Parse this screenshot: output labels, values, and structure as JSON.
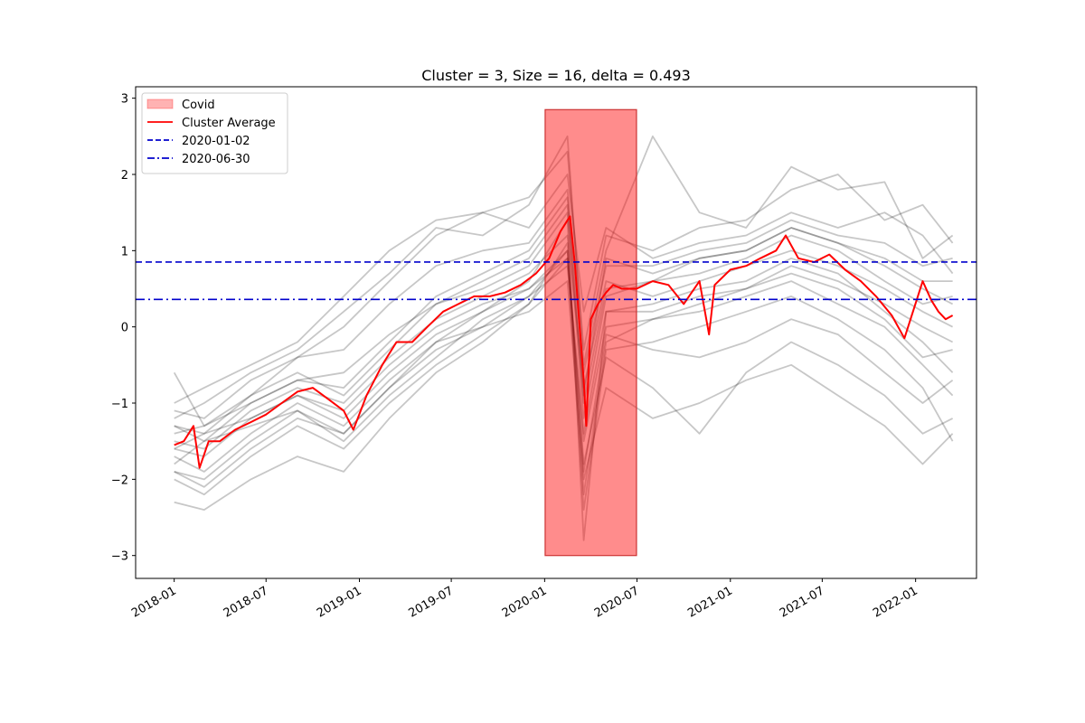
{
  "chart_data": {
    "type": "line",
    "title": "Cluster = 3, Size = 16, delta = 0.493",
    "xlabel": "",
    "ylabel": "",
    "x_range": [
      "2017-10-17",
      "2022-05-01"
    ],
    "ylim": [
      -3.3,
      3.15
    ],
    "yticks": [
      -3,
      -2,
      -1,
      0,
      1,
      2,
      3
    ],
    "ytick_labels": [
      "−3",
      "−2",
      "−1",
      "0",
      "1",
      "2",
      "3"
    ],
    "xticks": [
      "2018-01-01",
      "2018-07-01",
      "2019-01-01",
      "2019-07-01",
      "2020-01-01",
      "2020-07-01",
      "2021-01-01",
      "2021-07-01",
      "2022-01-01"
    ],
    "xtick_labels": [
      "2018-01",
      "2018-07",
      "2019-01",
      "2019-07",
      "2020-01",
      "2020-07",
      "2021-01",
      "2021-07",
      "2022-01"
    ],
    "grid": false,
    "legend_position": "top-left",
    "legend": [
      {
        "label": "Covid",
        "kind": "patch",
        "color": "#ff0000"
      },
      {
        "label": "Cluster Average",
        "kind": "line",
        "color": "#ff0000"
      },
      {
        "label": "2020-01-02",
        "kind": "dashed",
        "color": "#0000cc"
      },
      {
        "label": "2020-06-30",
        "kind": "dashdot",
        "color": "#0000cc"
      }
    ],
    "covid_span": {
      "x0": "2020-01-02",
      "x1": "2020-06-30",
      "y0": -3.0,
      "y1": 2.85,
      "color": "#ff0000"
    },
    "hlines": [
      {
        "label": "2020-01-02",
        "y": 0.85,
        "style": "dashed",
        "color": "#0000cc"
      },
      {
        "label": "2020-06-30",
        "y": 0.36,
        "style": "dashdot",
        "color": "#0000cc"
      }
    ],
    "cluster_average": {
      "name": "Cluster Average",
      "color": "#ff0000",
      "x": [
        "2018-01-01",
        "2018-01-20",
        "2018-02-08",
        "2018-02-20",
        "2018-03-10",
        "2018-04-01",
        "2018-05-01",
        "2018-06-01",
        "2018-07-01",
        "2018-08-01",
        "2018-09-01",
        "2018-10-01",
        "2018-11-01",
        "2018-12-01",
        "2018-12-20",
        "2019-01-15",
        "2019-02-15",
        "2019-03-15",
        "2019-04-15",
        "2019-05-15",
        "2019-06-15",
        "2019-07-15",
        "2019-08-15",
        "2019-09-15",
        "2019-10-15",
        "2019-11-15",
        "2019-12-15",
        "2020-01-10",
        "2020-02-01",
        "2020-02-20",
        "2020-03-01",
        "2020-03-10",
        "2020-03-18",
        "2020-03-23",
        "2020-04-01",
        "2020-04-15",
        "2020-05-01",
        "2020-05-15",
        "2020-06-01",
        "2020-06-30",
        "2020-08-01",
        "2020-09-01",
        "2020-10-01",
        "2020-11-01",
        "2020-11-20",
        "2020-12-01",
        "2021-01-01",
        "2021-02-01",
        "2021-03-01",
        "2021-04-01",
        "2021-04-20",
        "2021-05-15",
        "2021-06-15",
        "2021-07-15",
        "2021-08-15",
        "2021-09-15",
        "2021-10-15",
        "2021-11-15",
        "2021-12-10",
        "2022-01-15",
        "2022-02-01",
        "2022-02-15",
        "2022-03-01",
        "2022-03-15"
      ],
      "y": [
        -1.55,
        -1.5,
        -1.3,
        -1.85,
        -1.5,
        -1.5,
        -1.35,
        -1.25,
        -1.15,
        -1.0,
        -0.85,
        -0.8,
        -0.95,
        -1.1,
        -1.35,
        -0.9,
        -0.5,
        -0.2,
        -0.2,
        0.0,
        0.2,
        0.3,
        0.4,
        0.4,
        0.45,
        0.55,
        0.7,
        0.9,
        1.25,
        1.45,
        0.8,
        0.0,
        -0.7,
        -1.3,
        0.1,
        0.3,
        0.45,
        0.55,
        0.5,
        0.5,
        0.6,
        0.55,
        0.3,
        0.6,
        -0.1,
        0.55,
        0.75,
        0.8,
        0.9,
        1.0,
        1.2,
        0.9,
        0.85,
        0.95,
        0.75,
        0.6,
        0.4,
        0.15,
        -0.15,
        0.6,
        0.35,
        0.2,
        0.1,
        0.15
      ]
    },
    "member_series": [
      {
        "color": "#000000",
        "x": [
          "2018-01-01",
          "2018-03-01",
          "2018-06-01",
          "2018-09-01",
          "2018-12-01",
          "2019-03-01",
          "2019-06-01",
          "2019-09-01",
          "2019-12-01",
          "2020-02-15",
          "2020-03-18",
          "2020-05-01",
          "2020-08-01",
          "2020-11-01",
          "2021-02-01",
          "2021-05-01",
          "2021-08-01",
          "2021-11-01",
          "2022-01-15",
          "2022-03-15"
        ],
        "y": [
          -0.6,
          -1.3,
          -0.9,
          -0.4,
          0.0,
          0.6,
          1.2,
          1.5,
          1.7,
          2.3,
          -0.3,
          1.2,
          1.0,
          1.3,
          1.4,
          1.8,
          2.0,
          1.4,
          1.6,
          1.1
        ]
      },
      {
        "color": "#000000",
        "x": [
          "2018-01-01",
          "2018-03-01",
          "2018-06-01",
          "2018-09-01",
          "2018-12-01",
          "2019-03-01",
          "2019-06-01",
          "2019-09-01",
          "2019-12-01",
          "2020-02-15",
          "2020-03-18",
          "2020-05-01",
          "2020-08-01",
          "2020-11-01",
          "2021-02-01",
          "2021-05-01",
          "2021-08-01",
          "2021-11-01",
          "2022-01-15",
          "2022-03-15"
        ],
        "y": [
          -2.3,
          -2.4,
          -2.0,
          -1.7,
          -1.9,
          -1.2,
          -0.6,
          -0.2,
          0.3,
          0.9,
          -2.4,
          -0.3,
          -0.2,
          0.0,
          0.2,
          0.4,
          0.1,
          -0.3,
          -0.8,
          -1.5
        ]
      },
      {
        "color": "#000000",
        "x": [
          "2018-01-01",
          "2018-03-01",
          "2018-06-01",
          "2018-09-01",
          "2018-12-01",
          "2019-03-01",
          "2019-06-01",
          "2019-09-01",
          "2019-12-01",
          "2020-02-15",
          "2020-03-18",
          "2020-05-01",
          "2020-08-01",
          "2020-11-01",
          "2021-02-01",
          "2021-05-01",
          "2021-08-01",
          "2021-11-01",
          "2022-01-15",
          "2022-03-15"
        ],
        "y": [
          -1.9,
          -2.1,
          -1.6,
          -1.2,
          -1.4,
          -0.8,
          -0.2,
          0.2,
          0.6,
          1.4,
          -2.8,
          0.2,
          0.3,
          0.5,
          0.6,
          0.9,
          0.7,
          0.2,
          -0.2,
          -0.6
        ]
      },
      {
        "color": "#000000",
        "x": [
          "2018-01-01",
          "2018-03-01",
          "2018-06-01",
          "2018-09-01",
          "2018-12-01",
          "2019-03-01",
          "2019-06-01",
          "2019-09-01",
          "2019-12-01",
          "2020-02-15",
          "2020-03-18",
          "2020-05-01",
          "2020-08-01",
          "2020-11-01",
          "2021-02-01",
          "2021-05-01",
          "2021-08-01",
          "2021-11-01",
          "2022-01-15",
          "2022-03-15"
        ],
        "y": [
          -1.2,
          -1.0,
          -0.6,
          -0.3,
          0.2,
          0.7,
          1.3,
          1.2,
          1.6,
          2.5,
          -0.5,
          1.0,
          2.5,
          1.5,
          1.3,
          2.1,
          1.8,
          1.9,
          0.9,
          1.2
        ]
      },
      {
        "color": "#000000",
        "x": [
          "2018-01-01",
          "2018-03-01",
          "2018-06-01",
          "2018-09-01",
          "2018-12-01",
          "2019-03-01",
          "2019-06-01",
          "2019-09-01",
          "2019-12-01",
          "2020-02-15",
          "2020-03-18",
          "2020-05-01",
          "2020-08-01",
          "2020-11-01",
          "2021-02-01",
          "2021-05-01",
          "2021-08-01",
          "2021-11-01",
          "2022-01-15",
          "2022-03-15"
        ],
        "y": [
          -1.6,
          -1.7,
          -1.2,
          -0.9,
          -1.1,
          -0.5,
          0.0,
          0.3,
          0.5,
          1.0,
          -1.8,
          -0.4,
          -0.8,
          -1.4,
          -0.6,
          -0.2,
          -0.5,
          -0.9,
          -1.4,
          -1.2
        ]
      },
      {
        "color": "#000000",
        "x": [
          "2018-01-01",
          "2018-03-01",
          "2018-06-01",
          "2018-09-01",
          "2018-12-01",
          "2019-03-01",
          "2019-06-01",
          "2019-09-01",
          "2019-12-01",
          "2020-02-15",
          "2020-03-18",
          "2020-05-01",
          "2020-08-01",
          "2020-11-01",
          "2021-02-01",
          "2021-05-01",
          "2021-08-01",
          "2021-11-01",
          "2022-01-15",
          "2022-03-15"
        ],
        "y": [
          -1.4,
          -1.3,
          -1.0,
          -0.7,
          -0.6,
          -0.1,
          0.3,
          0.6,
          0.9,
          1.6,
          -1.0,
          0.5,
          0.6,
          0.9,
          1.0,
          1.3,
          1.1,
          0.8,
          0.5,
          0.3
        ]
      },
      {
        "color": "#000000",
        "x": [
          "2018-01-01",
          "2018-03-01",
          "2018-06-01",
          "2018-09-01",
          "2018-12-01",
          "2019-03-01",
          "2019-06-01",
          "2019-09-01",
          "2019-12-01",
          "2020-02-15",
          "2020-03-18",
          "2020-05-01",
          "2020-08-01",
          "2020-11-01",
          "2021-02-01",
          "2021-05-01",
          "2021-08-01",
          "2021-11-01",
          "2022-01-15",
          "2022-03-15"
        ],
        "y": [
          -1.8,
          -1.5,
          -1.3,
          -1.1,
          -1.5,
          -0.9,
          -0.4,
          0.1,
          0.4,
          0.8,
          -1.5,
          0.0,
          0.1,
          0.3,
          0.5,
          0.7,
          0.5,
          0.1,
          -0.4,
          -0.3
        ]
      },
      {
        "color": "#000000",
        "x": [
          "2018-01-01",
          "2018-03-01",
          "2018-06-01",
          "2018-09-01",
          "2018-12-01",
          "2019-03-01",
          "2019-06-01",
          "2019-09-01",
          "2019-12-01",
          "2020-02-15",
          "2020-03-18",
          "2020-05-01",
          "2020-08-01",
          "2020-11-01",
          "2021-02-01",
          "2021-05-01",
          "2021-08-01",
          "2021-11-01",
          "2022-01-15",
          "2022-03-15"
        ],
        "y": [
          -1.0,
          -0.8,
          -0.5,
          -0.2,
          0.4,
          1.0,
          1.4,
          1.5,
          1.3,
          2.0,
          0.2,
          1.3,
          0.9,
          1.1,
          1.2,
          1.5,
          1.3,
          1.5,
          1.2,
          0.7
        ]
      },
      {
        "color": "#000000",
        "x": [
          "2018-01-01",
          "2018-03-01",
          "2018-06-01",
          "2018-09-01",
          "2018-12-01",
          "2019-03-01",
          "2019-06-01",
          "2019-09-01",
          "2019-12-01",
          "2020-02-15",
          "2020-03-18",
          "2020-05-01",
          "2020-08-01",
          "2020-11-01",
          "2021-02-01",
          "2021-05-01",
          "2021-08-01",
          "2021-11-01",
          "2022-01-15",
          "2022-03-15"
        ],
        "y": [
          -1.7,
          -1.9,
          -1.4,
          -1.0,
          -1.3,
          -0.7,
          -0.2,
          0.0,
          0.2,
          0.6,
          -2.0,
          -0.8,
          -1.2,
          -1.0,
          -0.7,
          -0.5,
          -0.9,
          -1.3,
          -1.8,
          -1.4
        ]
      },
      {
        "color": "#000000",
        "x": [
          "2018-01-01",
          "2018-03-01",
          "2018-06-01",
          "2018-09-01",
          "2018-12-01",
          "2019-03-01",
          "2019-06-01",
          "2019-09-01",
          "2019-12-01",
          "2020-02-15",
          "2020-03-18",
          "2020-05-01",
          "2020-08-01",
          "2020-11-01",
          "2021-02-01",
          "2021-05-01",
          "2021-08-01",
          "2021-11-01",
          "2022-01-15",
          "2022-03-15"
        ],
        "y": [
          -1.3,
          -1.4,
          -0.9,
          -0.6,
          -0.9,
          -0.3,
          0.3,
          0.5,
          0.8,
          1.5,
          -1.2,
          0.4,
          0.6,
          0.7,
          0.9,
          1.2,
          1.0,
          0.6,
          0.3,
          0.4
        ]
      },
      {
        "color": "#000000",
        "x": [
          "2018-01-01",
          "2018-03-01",
          "2018-06-01",
          "2018-09-01",
          "2018-12-01",
          "2019-03-01",
          "2019-06-01",
          "2019-09-01",
          "2019-12-01",
          "2020-02-15",
          "2020-03-18",
          "2020-05-01",
          "2020-08-01",
          "2020-11-01",
          "2021-02-01",
          "2021-05-01",
          "2021-08-01",
          "2021-11-01",
          "2022-01-15",
          "2022-03-15"
        ],
        "y": [
          -1.5,
          -1.6,
          -1.1,
          -0.8,
          -1.0,
          -0.4,
          0.1,
          0.4,
          0.7,
          1.2,
          -0.8,
          0.6,
          0.4,
          0.6,
          0.8,
          1.0,
          0.8,
          0.5,
          0.2,
          0.0
        ]
      },
      {
        "color": "#000000",
        "x": [
          "2018-01-01",
          "2018-03-01",
          "2018-06-01",
          "2018-09-01",
          "2018-12-01",
          "2019-03-01",
          "2019-06-01",
          "2019-09-01",
          "2019-12-01",
          "2020-02-15",
          "2020-03-18",
          "2020-05-01",
          "2020-08-01",
          "2020-11-01",
          "2021-02-01",
          "2021-05-01",
          "2021-08-01",
          "2021-11-01",
          "2022-01-15",
          "2022-03-15"
        ],
        "y": [
          -2.0,
          -2.2,
          -1.7,
          -1.3,
          -1.6,
          -1.0,
          -0.5,
          -0.1,
          0.3,
          1.1,
          -2.2,
          -0.2,
          0.1,
          0.2,
          0.4,
          0.6,
          0.3,
          0.0,
          -0.5,
          -0.9
        ]
      },
      {
        "color": "#000000",
        "x": [
          "2018-01-01",
          "2018-03-01",
          "2018-06-01",
          "2018-09-01",
          "2018-12-01",
          "2019-03-01",
          "2019-06-01",
          "2019-09-01",
          "2019-12-01",
          "2020-02-15",
          "2020-03-18",
          "2020-05-01",
          "2020-08-01",
          "2020-11-01",
          "2021-02-01",
          "2021-05-01",
          "2021-08-01",
          "2021-11-01",
          "2022-01-15",
          "2022-03-15"
        ],
        "y": [
          -1.1,
          -1.2,
          -0.7,
          -0.4,
          -0.3,
          0.3,
          0.8,
          1.0,
          1.1,
          1.8,
          -0.6,
          0.8,
          0.8,
          1.0,
          1.1,
          1.4,
          1.2,
          1.1,
          0.8,
          0.9
        ]
      },
      {
        "color": "#000000",
        "x": [
          "2018-01-01",
          "2018-03-01",
          "2018-06-01",
          "2018-09-01",
          "2018-12-01",
          "2019-03-01",
          "2019-06-01",
          "2019-09-01",
          "2019-12-01",
          "2020-02-15",
          "2020-03-18",
          "2020-05-01",
          "2020-08-01",
          "2020-11-01",
          "2021-02-01",
          "2021-05-01",
          "2021-08-01",
          "2021-11-01",
          "2022-01-15",
          "2022-03-15"
        ],
        "y": [
          -1.6,
          -1.4,
          -1.2,
          -0.9,
          -1.2,
          -0.6,
          -0.1,
          0.2,
          0.5,
          0.9,
          -1.4,
          0.2,
          0.2,
          0.4,
          0.5,
          0.8,
          0.6,
          0.3,
          0.0,
          -0.2
        ]
      },
      {
        "color": "#000000",
        "x": [
          "2018-01-01",
          "2018-03-01",
          "2018-06-01",
          "2018-09-01",
          "2018-12-01",
          "2019-03-01",
          "2019-06-01",
          "2019-09-01",
          "2019-12-01",
          "2020-02-15",
          "2020-03-18",
          "2020-05-01",
          "2020-08-01",
          "2020-11-01",
          "2021-02-01",
          "2021-05-01",
          "2021-08-01",
          "2021-11-01",
          "2022-01-15",
          "2022-03-15"
        ],
        "y": [
          -1.3,
          -1.5,
          -1.0,
          -0.7,
          -0.8,
          -0.2,
          0.4,
          0.7,
          1.0,
          1.7,
          -0.9,
          0.9,
          0.7,
          0.9,
          1.0,
          1.3,
          1.1,
          0.9,
          0.6,
          0.6
        ]
      },
      {
        "color": "#000000",
        "x": [
          "2018-01-01",
          "2018-03-01",
          "2018-06-01",
          "2018-09-01",
          "2018-12-01",
          "2019-03-01",
          "2019-06-01",
          "2019-09-01",
          "2019-12-01",
          "2020-02-15",
          "2020-03-18",
          "2020-05-01",
          "2020-08-01",
          "2020-11-01",
          "2021-02-01",
          "2021-05-01",
          "2021-08-01",
          "2021-11-01",
          "2022-01-15",
          "2022-03-15"
        ],
        "y": [
          -1.9,
          -2.0,
          -1.5,
          -1.1,
          -1.4,
          -0.8,
          -0.3,
          0.0,
          0.4,
          1.0,
          -1.9,
          -0.1,
          -0.3,
          -0.4,
          -0.2,
          0.1,
          -0.1,
          -0.6,
          -1.0,
          -0.7
        ]
      }
    ]
  }
}
